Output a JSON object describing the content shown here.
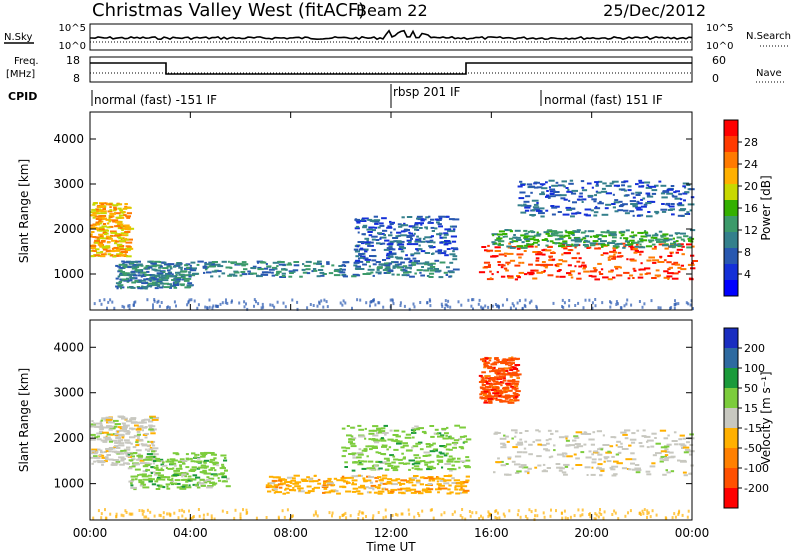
{
  "header": {
    "station": "Christmas Valley West (fitACF)",
    "beam": "Beam 22",
    "date": "25/Dec/2012"
  },
  "noise_panel": {
    "left_label": "N.Sky",
    "left_ticks": [
      "10^5",
      "10^0"
    ],
    "right_ticks": [
      "10^5",
      "10^0"
    ],
    "right_label": "N.Search"
  },
  "freq_panel": {
    "left_label_1": "Freq.",
    "left_label_2": "[MHz]",
    "left_ticks": [
      "18",
      "8"
    ],
    "right_ticks": [
      "60",
      "0"
    ],
    "right_label": "Nave"
  },
  "cpid": {
    "label": "CPID",
    "segments": [
      {
        "text": "normal (fast) -151 IF",
        "start_hour": 0
      },
      {
        "text": "rbsp 201 IF",
        "start_hour": 12
      },
      {
        "text": "normal (fast) 151 IF",
        "start_hour": 18
      }
    ]
  },
  "power_panel": {
    "ylabel": "Slant Range [km]",
    "yticks": [
      "4000",
      "3000",
      "2000",
      "1000"
    ],
    "colorbar_label": "Power [dB]",
    "colorbar_ticks": [
      "28",
      "24",
      "20",
      "16",
      "12",
      "8",
      "4"
    ],
    "colorbar_colors": [
      "#ff0000",
      "#ff3a00",
      "#ff7a00",
      "#ffb000",
      "#c8d800",
      "#34b000",
      "#3c9a6a",
      "#34808c",
      "#2858b0",
      "#1430d8",
      "#0000ff"
    ]
  },
  "velocity_panel": {
    "ylabel": "Slant Range [km]",
    "yticks": [
      "4000",
      "3000",
      "2000",
      "1000"
    ],
    "colorbar_label": "Velocity [m s⁻¹]",
    "colorbar_ticks": [
      "200",
      "100",
      "50",
      "15",
      "-15",
      "-50",
      "-100",
      "-200"
    ],
    "colorbar_colors": [
      "#1a2ec0",
      "#2e6aa0",
      "#1a9a3a",
      "#7ccc3c",
      "#c8c8c0",
      "#ffb000",
      "#ff8000",
      "#ff5000",
      "#ff0000"
    ]
  },
  "x_axis": {
    "ticks": [
      "00:00",
      "04:00",
      "08:00",
      "12:00",
      "16:00",
      "20:00",
      "00:00"
    ],
    "label": "Time UT"
  },
  "chart_data": {
    "type": "heatmap",
    "title": "Christmas Valley West (fitACF)",
    "subtitle": "Beam 22",
    "date": "25/Dec/2012",
    "xlabel": "Time UT",
    "ylabel": "Slant Range [km]",
    "xlim_hours": [
      0,
      24
    ],
    "ylim_km": [
      200,
      4600
    ],
    "frequency_mhz": [
      {
        "from_hour": 0,
        "to_hour": 3,
        "value": 16
      },
      {
        "from_hour": 3,
        "to_hour": 15,
        "value": 9.5
      },
      {
        "from_hour": 15,
        "to_hour": 24,
        "value": 16
      }
    ],
    "power_regions": [
      {
        "hours": [
          0,
          1.5
        ],
        "range_km": [
          1400,
          2600
        ],
        "dB": 20
      },
      {
        "hours": [
          1,
          4
        ],
        "range_km": [
          700,
          1300
        ],
        "dB": 8
      },
      {
        "hours": [
          4,
          14.5
        ],
        "range_km": [
          950,
          1300
        ],
        "dB": 8
      },
      {
        "hours": [
          10.5,
          14.5
        ],
        "range_km": [
          1300,
          2300
        ],
        "dB": 6
      },
      {
        "hours": [
          15.5,
          24
        ],
        "range_km": [
          900,
          1700
        ],
        "dB": 26
      },
      {
        "hours": [
          16,
          24
        ],
        "range_km": [
          1600,
          2000
        ],
        "dB": 12
      },
      {
        "hours": [
          17,
          24
        ],
        "range_km": [
          2300,
          3100
        ],
        "dB": 6
      }
    ],
    "velocity_regions": [
      {
        "hours": [
          0,
          2.5
        ],
        "range_km": [
          1400,
          2500
        ],
        "m_s": 0
      },
      {
        "hours": [
          1.5,
          5.5
        ],
        "range_km": [
          900,
          1700
        ],
        "m_s": 30
      },
      {
        "hours": [
          7,
          15
        ],
        "range_km": [
          800,
          1200
        ],
        "m_s": -30
      },
      {
        "hours": [
          10,
          15
        ],
        "range_km": [
          1300,
          2300
        ],
        "m_s": 30
      },
      {
        "hours": [
          16,
          24
        ],
        "range_km": [
          1200,
          2200
        ],
        "m_s": 0
      },
      {
        "hours": [
          15.5,
          17
        ],
        "range_km": [
          2800,
          3800
        ],
        "m_s": -120
      }
    ]
  }
}
